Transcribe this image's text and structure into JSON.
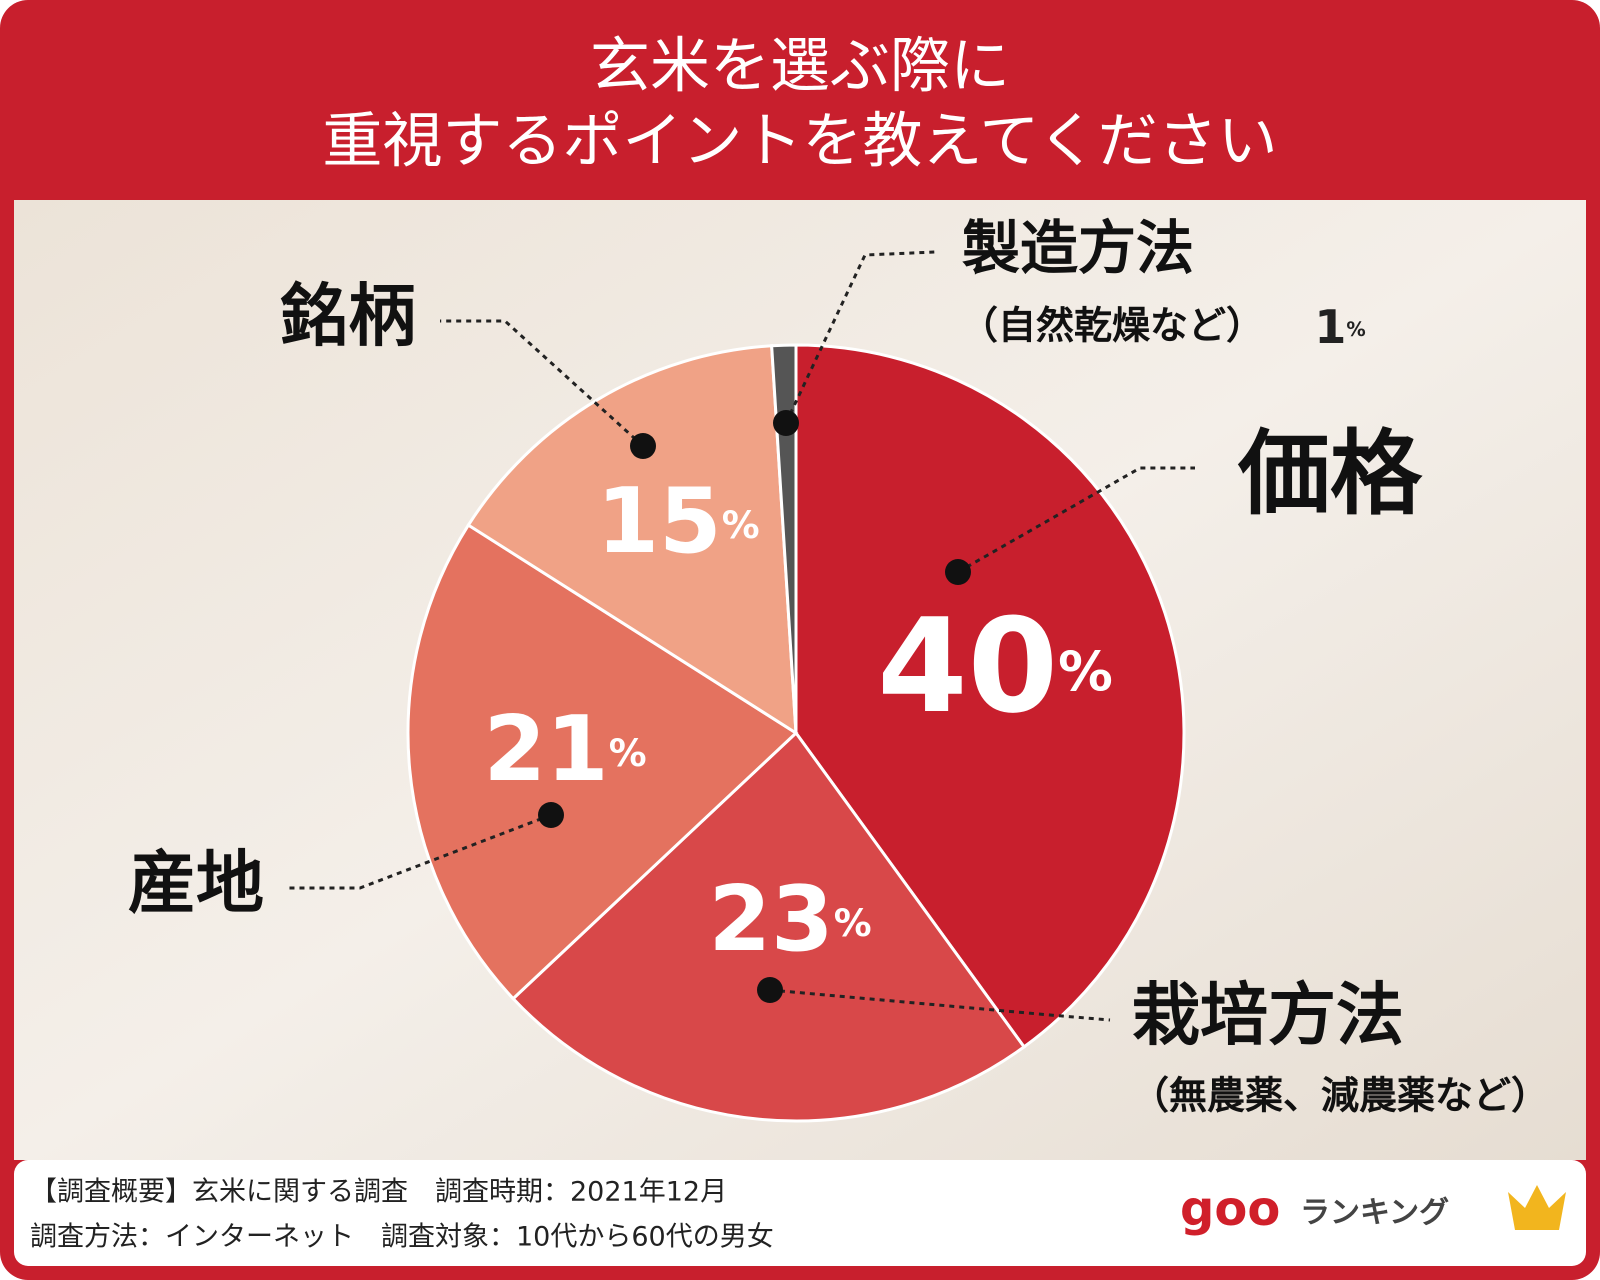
{
  "chart_data": {
    "type": "pie",
    "title": [
      "玄米を選ぶ際に",
      "重視するポイントを教えてください"
    ],
    "categories": [
      "価格",
      "栽培方法",
      "産地",
      "銘柄",
      "製造方法"
    ],
    "annotations": [
      null,
      "（無農薬、減農薬など）",
      null,
      null,
      "（自然乾燥など）"
    ],
    "values": [
      40,
      23,
      21,
      15,
      1
    ],
    "value_labels": [
      "40%",
      "23%",
      "21%",
      "15%",
      "1%"
    ],
    "colors": [
      "#c81f2d",
      "#d84849",
      "#e4725f",
      "#f0a286",
      "#555555"
    ]
  },
  "footer": {
    "lines": [
      "【調査概要】玄米に関する調査　調査時期：2021年12月",
      "調査方法：インターネット　調査対象：10代から60代の男女"
    ]
  },
  "logo": {
    "brand": "goo",
    "text": "ランキング"
  }
}
